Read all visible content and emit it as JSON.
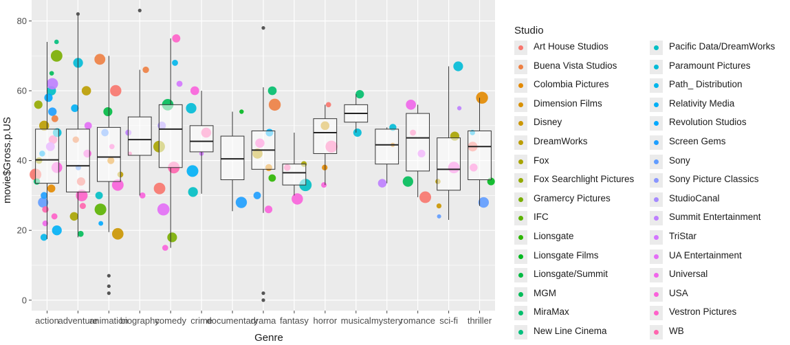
{
  "chart_data": {
    "type": "scatter",
    "subtype": "boxplot-with-jittered-points",
    "xlabel": "Genre",
    "ylabel": "movie$Gross.p.US",
    "ylim": [
      -3,
      86
    ],
    "yticks": [
      0,
      20,
      40,
      60,
      80
    ],
    "grid": true,
    "legend_placement": "right",
    "legend_title": "Studio",
    "categories": [
      "action",
      "adventure",
      "animation",
      "biography",
      "comedy",
      "crime",
      "documentary",
      "drama",
      "fantasy",
      "horror",
      "musical",
      "mystery",
      "romance",
      "sci-fi",
      "thriller"
    ],
    "boxes": [
      {
        "genre": "action",
        "q1": 33.5,
        "median": 40.2,
        "q3": 49,
        "lower": 17.5,
        "upper": 74
      },
      {
        "genre": "adventure",
        "q1": 31,
        "median": 38.5,
        "q3": 49,
        "lower": 18,
        "upper": 82
      },
      {
        "genre": "animation",
        "q1": 34,
        "median": 41,
        "q3": 49.5,
        "lower": 19.5,
        "upper": 70
      },
      {
        "genre": "biography",
        "q1": 41.5,
        "median": 46,
        "q3": 52.5,
        "lower": 30,
        "upper": 66
      },
      {
        "genre": "comedy",
        "q1": 38,
        "median": 49,
        "q3": 56,
        "lower": 15,
        "upper": 75
      },
      {
        "genre": "crime",
        "q1": 42.5,
        "median": 45.5,
        "q3": 50,
        "lower": 30.5,
        "upper": 60
      },
      {
        "genre": "documentary",
        "q1": 34.5,
        "median": 40.5,
        "q3": 47,
        "lower": 25.5,
        "upper": 54
      },
      {
        "genre": "drama",
        "q1": 37.5,
        "median": 43,
        "q3": 48.5,
        "lower": 25,
        "upper": 61
      },
      {
        "genre": "fantasy",
        "q1": 33,
        "median": 36.5,
        "q3": 39,
        "lower": 30,
        "upper": 48
      },
      {
        "genre": "horror",
        "q1": 42,
        "median": 48,
        "q3": 52,
        "lower": 33,
        "upper": 56
      },
      {
        "genre": "musical",
        "q1": 51,
        "median": 53.5,
        "q3": 56,
        "lower": 48,
        "upper": 59
      },
      {
        "genre": "mystery",
        "q1": 39,
        "median": 44.5,
        "q3": 49,
        "lower": 33.5,
        "upper": 49.5
      },
      {
        "genre": "romance",
        "q1": 37,
        "median": 46.5,
        "q3": 53.5,
        "lower": 29.5,
        "upper": 56
      },
      {
        "genre": "sci-fi",
        "q1": 31.5,
        "median": 37.5,
        "q3": 46.5,
        "lower": 23,
        "upper": 67
      },
      {
        "genre": "thriller",
        "q1": 34.5,
        "median": 44,
        "q3": 48.5,
        "lower": 27,
        "upper": 58
      }
    ],
    "outliers": [
      {
        "genre": "adventure",
        "y": 82
      },
      {
        "genre": "animation",
        "y": 7
      },
      {
        "genre": "animation",
        "y": 4
      },
      {
        "genre": "animation",
        "y": 2
      },
      {
        "genre": "biography",
        "y": 83
      },
      {
        "genre": "drama",
        "y": 78
      },
      {
        "genre": "drama",
        "y": 2
      },
      {
        "genre": "drama",
        "y": 0
      }
    ],
    "series": [
      {
        "name": "Art House Studios",
        "color": "#F8766D"
      },
      {
        "name": "Buena Vista Studios",
        "color": "#EE8043"
      },
      {
        "name": "Colombia Pictures",
        "color": "#E38900"
      },
      {
        "name": "Dimension Films",
        "color": "#D89000"
      },
      {
        "name": "Disney",
        "color": "#CB9600"
      },
      {
        "name": "DreamWorks",
        "color": "#BB9D00"
      },
      {
        "name": "Fox",
        "color": "#A8A400"
      },
      {
        "name": "Fox Searchlight Pictures",
        "color": "#93AA00"
      },
      {
        "name": "Gramercy Pictures",
        "color": "#7AAE00"
      },
      {
        "name": "IFC",
        "color": "#5BB300"
      },
      {
        "name": "Lionsgate",
        "color": "#2CB600"
      },
      {
        "name": "Lionsgate Films",
        "color": "#00B81F"
      },
      {
        "name": "Lionsgate/Summit",
        "color": "#00BA42"
      },
      {
        "name": "MGM",
        "color": "#00BC59"
      },
      {
        "name": "MiraMax",
        "color": "#00BE6C"
      },
      {
        "name": "New Line Cinema",
        "color": "#00BF7D"
      },
      {
        "name": "Pacific Data/DreamWorks",
        "color": "#00BFC4"
      },
      {
        "name": "Paramount Pictures",
        "color": "#00BBD7"
      },
      {
        "name": "Path_ Distribution",
        "color": "#00B6EB"
      },
      {
        "name": "Relativity Media",
        "color": "#00B0F6"
      },
      {
        "name": "Revolution Studios",
        "color": "#00A9FF"
      },
      {
        "name": "Screen Gems",
        "color": "#1E9FFF"
      },
      {
        "name": "Sony",
        "color": "#619CFF"
      },
      {
        "name": "Sony Picture Classics",
        "color": "#8995FF"
      },
      {
        "name": "StudioCanal",
        "color": "#A58AFF"
      },
      {
        "name": "Summit Entertainment",
        "color": "#BE80FF"
      },
      {
        "name": "TriStar",
        "color": "#D376FF"
      },
      {
        "name": "UA Entertainment",
        "color": "#E36EF6"
      },
      {
        "name": "Universal",
        "color": "#F066EA"
      },
      {
        "name": "USA",
        "color": "#FA62DB"
      },
      {
        "name": "Vestron Pictures",
        "color": "#FF61C9"
      },
      {
        "name": "WB",
        "color": "#FF65AE"
      }
    ],
    "points": [
      {
        "genre": "action",
        "y": 36,
        "series": 0
      },
      {
        "genre": "action",
        "y": 42,
        "series": 19
      },
      {
        "genre": "action",
        "y": 54,
        "series": 21
      },
      {
        "genre": "action",
        "y": 28,
        "series": 22
      },
      {
        "genre": "action",
        "y": 46,
        "series": 31
      },
      {
        "genre": "action",
        "y": 60,
        "series": 16
      },
      {
        "genre": "action",
        "y": 24,
        "series": 30
      },
      {
        "genre": "action",
        "y": 50,
        "series": 5
      },
      {
        "genre": "action",
        "y": 65,
        "series": 13
      },
      {
        "genre": "action",
        "y": 32,
        "series": 2
      },
      {
        "genre": "action",
        "y": 38,
        "series": 29
      },
      {
        "genre": "action",
        "y": 56,
        "series": 7
      },
      {
        "genre": "action",
        "y": 20,
        "series": 19
      },
      {
        "genre": "action",
        "y": 44,
        "series": 26
      },
      {
        "genre": "action",
        "y": 70,
        "series": 8
      },
      {
        "genre": "action",
        "y": 30,
        "series": 21
      },
      {
        "genre": "action",
        "y": 52,
        "series": 1
      },
      {
        "genre": "action",
        "y": 40,
        "series": 6
      },
      {
        "genre": "action",
        "y": 26,
        "series": 31
      },
      {
        "genre": "action",
        "y": 48,
        "series": 17
      },
      {
        "genre": "action",
        "y": 62,
        "series": 25
      },
      {
        "genre": "action",
        "y": 34,
        "series": 14
      },
      {
        "genre": "action",
        "y": 58,
        "series": 20
      },
      {
        "genre": "action",
        "y": 22,
        "series": 28
      },
      {
        "genre": "action",
        "y": 74,
        "series": 15
      },
      {
        "genre": "action",
        "y": 18,
        "series": 18
      },
      {
        "genre": "adventure",
        "y": 30,
        "series": 30
      },
      {
        "genre": "adventure",
        "y": 38,
        "series": 22
      },
      {
        "genre": "adventure",
        "y": 46,
        "series": 1
      },
      {
        "genre": "adventure",
        "y": 55,
        "series": 19
      },
      {
        "genre": "adventure",
        "y": 24,
        "series": 6
      },
      {
        "genre": "adventure",
        "y": 19,
        "series": 13
      },
      {
        "genre": "adventure",
        "y": 42,
        "series": 29
      },
      {
        "genre": "adventure",
        "y": 60,
        "series": 5
      },
      {
        "genre": "adventure",
        "y": 34,
        "series": 0
      },
      {
        "genre": "adventure",
        "y": 68,
        "series": 17
      },
      {
        "genre": "adventure",
        "y": 50,
        "series": 27
      },
      {
        "genre": "adventure",
        "y": 27,
        "series": 31
      },
      {
        "genre": "animation",
        "y": 40,
        "series": 2
      },
      {
        "genre": "animation",
        "y": 48,
        "series": 22
      },
      {
        "genre": "animation",
        "y": 60,
        "series": 0
      },
      {
        "genre": "animation",
        "y": 69,
        "series": 1
      },
      {
        "genre": "animation",
        "y": 30,
        "series": 16
      },
      {
        "genre": "animation",
        "y": 22,
        "series": 20
      },
      {
        "genre": "animation",
        "y": 36,
        "series": 5
      },
      {
        "genre": "animation",
        "y": 44,
        "series": 30
      },
      {
        "genre": "animation",
        "y": 54,
        "series": 12
      },
      {
        "genre": "animation",
        "y": 26,
        "series": 9
      },
      {
        "genre": "animation",
        "y": 19,
        "series": 4
      },
      {
        "genre": "animation",
        "y": 33,
        "series": 29
      },
      {
        "genre": "biography",
        "y": 66,
        "series": 1
      },
      {
        "genre": "biography",
        "y": 48,
        "series": 25
      },
      {
        "genre": "biography",
        "y": 42,
        "series": 31
      },
      {
        "genre": "biography",
        "y": 30,
        "series": 29
      },
      {
        "genre": "comedy",
        "y": 75,
        "series": 30
      },
      {
        "genre": "comedy",
        "y": 68,
        "series": 18
      },
      {
        "genre": "comedy",
        "y": 62,
        "series": 26
      },
      {
        "genre": "comedy",
        "y": 56,
        "series": 13
      },
      {
        "genre": "comedy",
        "y": 50,
        "series": 24
      },
      {
        "genre": "comedy",
        "y": 44,
        "series": 6
      },
      {
        "genre": "comedy",
        "y": 38,
        "series": 31
      },
      {
        "genre": "comedy",
        "y": 32,
        "series": 0
      },
      {
        "genre": "comedy",
        "y": 26,
        "series": 27
      },
      {
        "genre": "comedy",
        "y": 18,
        "series": 8
      },
      {
        "genre": "comedy",
        "y": 15,
        "series": 29
      },
      {
        "genre": "crime",
        "y": 60,
        "series": 29
      },
      {
        "genre": "crime",
        "y": 55,
        "series": 17
      },
      {
        "genre": "crime",
        "y": 48,
        "series": 31
      },
      {
        "genre": "crime",
        "y": 42,
        "series": 26
      },
      {
        "genre": "crime",
        "y": 37,
        "series": 19
      },
      {
        "genre": "crime",
        "y": 31,
        "series": 16
      },
      {
        "genre": "documentary",
        "y": 54,
        "series": 11
      },
      {
        "genre": "documentary",
        "y": 28,
        "series": 21
      },
      {
        "genre": "drama",
        "y": 56,
        "series": 1
      },
      {
        "genre": "drama",
        "y": 48,
        "series": 19
      },
      {
        "genre": "drama",
        "y": 42,
        "series": 5
      },
      {
        "genre": "drama",
        "y": 35,
        "series": 10
      },
      {
        "genre": "drama",
        "y": 30,
        "series": 21
      },
      {
        "genre": "drama",
        "y": 60,
        "series": 14
      },
      {
        "genre": "drama",
        "y": 45,
        "series": 30
      },
      {
        "genre": "drama",
        "y": 38,
        "series": 2
      },
      {
        "genre": "drama",
        "y": 26,
        "series": 29
      },
      {
        "genre": "fantasy",
        "y": 38,
        "series": 31
      },
      {
        "genre": "fantasy",
        "y": 33,
        "series": 16
      },
      {
        "genre": "fantasy",
        "y": 29,
        "series": 29
      },
      {
        "genre": "fantasy",
        "y": 39,
        "series": 6
      },
      {
        "genre": "horror",
        "y": 56,
        "series": 0
      },
      {
        "genre": "horror",
        "y": 50,
        "series": 4
      },
      {
        "genre": "horror",
        "y": 44,
        "series": 31
      },
      {
        "genre": "horror",
        "y": 38,
        "series": 2
      },
      {
        "genre": "horror",
        "y": 33,
        "series": 29
      },
      {
        "genre": "musical",
        "y": 59,
        "series": 14
      },
      {
        "genre": "musical",
        "y": 48,
        "series": 17
      },
      {
        "genre": "mystery",
        "y": 49.5,
        "series": 17
      },
      {
        "genre": "mystery",
        "y": 44.5,
        "series": 2
      },
      {
        "genre": "mystery",
        "y": 33.5,
        "series": 25
      },
      {
        "genre": "romance",
        "y": 56,
        "series": 28
      },
      {
        "genre": "romance",
        "y": 48,
        "series": 31
      },
      {
        "genre": "romance",
        "y": 42,
        "series": 27
      },
      {
        "genre": "romance",
        "y": 34,
        "series": 13
      },
      {
        "genre": "romance",
        "y": 29.5,
        "series": 0
      },
      {
        "genre": "sci-fi",
        "y": 67,
        "series": 17
      },
      {
        "genre": "sci-fi",
        "y": 55,
        "series": 25
      },
      {
        "genre": "sci-fi",
        "y": 47,
        "series": 6
      },
      {
        "genre": "sci-fi",
        "y": 38,
        "series": 29
      },
      {
        "genre": "sci-fi",
        "y": 34,
        "series": 5
      },
      {
        "genre": "sci-fi",
        "y": 27,
        "series": 4
      },
      {
        "genre": "sci-fi",
        "y": 24,
        "series": 22
      },
      {
        "genre": "thriller",
        "y": 58,
        "series": 2
      },
      {
        "genre": "thriller",
        "y": 48,
        "series": 18
      },
      {
        "genre": "thriller",
        "y": 44,
        "series": 0
      },
      {
        "genre": "thriller",
        "y": 38,
        "series": 30
      },
      {
        "genre": "thriller",
        "y": 34,
        "series": 11
      },
      {
        "genre": "thriller",
        "y": 28,
        "series": 22
      }
    ]
  }
}
